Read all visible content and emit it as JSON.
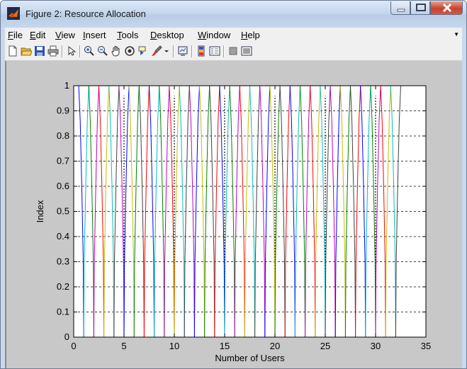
{
  "window": {
    "title": "Figure 2: Resource Allocation",
    "icons": {
      "app": "matlab-logo-icon",
      "minimize": "minimize-icon",
      "maximize": "maximize-icon",
      "close": "close-icon"
    }
  },
  "menu": {
    "items": [
      "File",
      "Edit",
      "View",
      "Insert",
      "Tools",
      "Desktop",
      "Window",
      "Help"
    ]
  },
  "toolbar": {
    "icons": [
      "new-figure-icon",
      "open-file-icon",
      "save-icon",
      "print-icon",
      "edit-plot-arrow-icon",
      "zoom-in-icon",
      "zoom-out-icon",
      "pan-hand-icon",
      "rotate-3d-icon",
      "data-cursor-icon",
      "brush-icon",
      "brush-dropdown-icon",
      "link-plot-icon",
      "colorbar-icon",
      "legend-icon",
      "hide-plot-tools-icon",
      "show-plot-tools-icon"
    ]
  },
  "chart_data": {
    "type": "line",
    "title": "",
    "xlabel": "Number of Users",
    "ylabel": "Index",
    "xlim": [
      0,
      35
    ],
    "ylim": [
      0,
      1
    ],
    "xticks": [
      "0",
      "5",
      "10",
      "15",
      "20",
      "25",
      "30",
      "35"
    ],
    "yticks": [
      "0",
      "0.1",
      "0.2",
      "0.3",
      "0.4",
      "0.5",
      "0.6",
      "0.7",
      "0.8",
      "0.9",
      "1"
    ],
    "grid": "horizontal dashed",
    "legend": "none",
    "colors": [
      "#0000ff",
      "#008000",
      "#ff0000",
      "#00bfbf",
      "#bf00bf",
      "#bfbf00",
      "#404040"
    ],
    "series_description": "One line per user index x=1..32; each rises vertically from 0 at x and tapers from x-0.5 to x+0.5 near 1",
    "users": [
      1,
      2,
      3,
      4,
      5,
      6,
      7,
      8,
      9,
      10,
      11,
      12,
      13,
      14,
      15,
      16,
      17,
      18,
      19,
      20,
      21,
      22,
      23,
      24,
      25,
      26,
      27,
      28,
      29,
      30,
      31,
      32
    ],
    "black_dotted_markers_x": [
      5,
      10,
      15,
      20,
      25,
      30
    ]
  }
}
